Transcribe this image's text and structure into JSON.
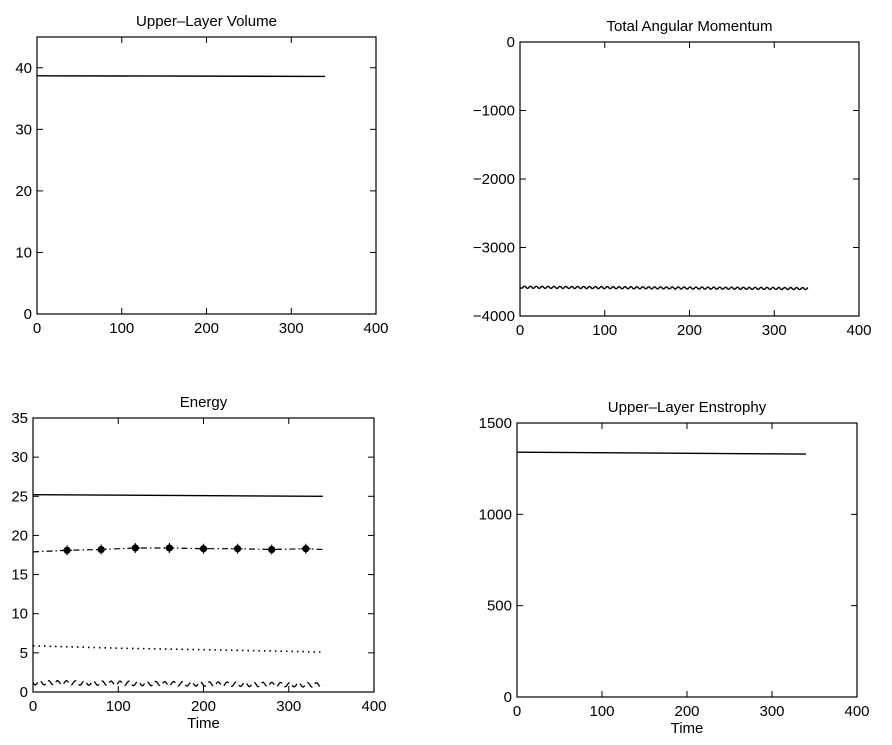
{
  "chart_data": [
    {
      "type": "line",
      "title": "Upper–Layer Volume",
      "xlabel": "",
      "xlim": [
        0,
        400
      ],
      "ylim": [
        0,
        45
      ],
      "xticks": [
        0,
        100,
        200,
        300,
        400
      ],
      "yticks": [
        0,
        10,
        20,
        30,
        40
      ],
      "grid": false,
      "series": [
        {
          "style": "solid",
          "x": [
            0,
            340
          ],
          "y": [
            38.7,
            38.6
          ]
        }
      ]
    },
    {
      "type": "line",
      "title": "Total Angular Momentum",
      "xlabel": "",
      "xlim": [
        0,
        400
      ],
      "ylim": [
        -4000,
        0
      ],
      "xticks": [
        0,
        100,
        200,
        300,
        400
      ],
      "yticks": [
        -4000,
        -3000,
        -2000,
        -1000,
        0
      ],
      "grid": false,
      "series": [
        {
          "style": "wavy",
          "x": [
            0,
            340
          ],
          "y": [
            -3580,
            -3600
          ],
          "oscillation_amplitude": 15
        }
      ]
    },
    {
      "type": "line",
      "title": "Energy",
      "xlabel": "Time",
      "xlim": [
        0,
        400
      ],
      "ylim": [
        0,
        35
      ],
      "xticks": [
        0,
        100,
        200,
        300,
        400
      ],
      "yticks": [
        0,
        5,
        10,
        15,
        20,
        25,
        30,
        35
      ],
      "grid": false,
      "series": [
        {
          "style": "solid",
          "x": [
            0,
            340
          ],
          "y": [
            25.2,
            25.0
          ]
        },
        {
          "style": "dashdot-star",
          "x": [
            0,
            40,
            80,
            120,
            160,
            200,
            240,
            280,
            320,
            340
          ],
          "y": [
            17.9,
            18.1,
            18.2,
            18.4,
            18.4,
            18.3,
            18.3,
            18.2,
            18.3,
            18.2
          ],
          "marker_x": [
            40,
            80,
            120,
            160,
            200,
            240,
            280,
            320
          ]
        },
        {
          "style": "dotted",
          "x": [
            0,
            100,
            200,
            300,
            340
          ],
          "y": [
            5.9,
            5.6,
            5.4,
            5.2,
            5.1
          ]
        },
        {
          "style": "dashed-wavy",
          "x": [
            0,
            340
          ],
          "y": [
            1.2,
            0.9
          ]
        }
      ]
    },
    {
      "type": "line",
      "title": "Upper–Layer Enstrophy",
      "xlabel": "Time",
      "xlim": [
        0,
        400
      ],
      "ylim": [
        0,
        1500
      ],
      "xticks": [
        0,
        100,
        200,
        300,
        400
      ],
      "yticks": [
        0,
        500,
        1000,
        1500
      ],
      "grid": false,
      "series": [
        {
          "style": "solid",
          "x": [
            0,
            340
          ],
          "y": [
            1340,
            1330
          ]
        }
      ]
    }
  ]
}
